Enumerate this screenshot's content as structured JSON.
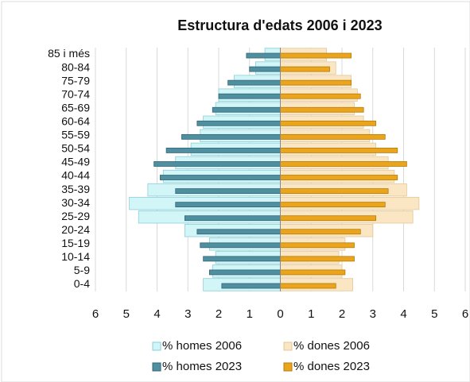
{
  "chart_data": {
    "type": "pyramid",
    "title": "Estructura d'edats 2006 i 2023",
    "categories": [
      "0-4",
      "5-9",
      "10-14",
      "15-19",
      "20-24",
      "25-29",
      "30-34",
      "35-39",
      "40-44",
      "45-49",
      "50-54",
      "55-59",
      "60-64",
      "65-69",
      "70-74",
      "75-79",
      "80-84",
      "85 i més"
    ],
    "series": [
      {
        "name": "% homes 2006",
        "color": "#d2f6f8",
        "stroke": "#8ccfd6",
        "year": "2006",
        "values": [
          -2.5,
          -2.2,
          -2.1,
          -2.3,
          -3.1,
          -4.6,
          -4.9,
          -4.3,
          -3.8,
          -3.4,
          -2.9,
          -2.6,
          -2.5,
          -2.1,
          -2.0,
          -1.5,
          -0.8,
          -0.5
        ]
      },
      {
        "name": "% dones 2006",
        "color": "#fbe6c4",
        "stroke": "#e2c89a",
        "year": "2006",
        "values": [
          2.35,
          2.0,
          1.9,
          2.1,
          3.0,
          4.3,
          4.5,
          4.1,
          3.7,
          3.5,
          3.1,
          2.9,
          2.7,
          2.4,
          2.5,
          2.3,
          1.8,
          1.5
        ]
      },
      {
        "name": "% homes 2023",
        "color": "#4f8fa0",
        "stroke": "#2f6676",
        "year": "2023",
        "values": [
          -1.9,
          -2.3,
          -2.5,
          -2.6,
          -2.7,
          -3.1,
          -3.4,
          -3.4,
          -3.9,
          -4.1,
          -3.7,
          -3.2,
          -2.7,
          -2.2,
          -2.0,
          -1.7,
          -1.0,
          -1.1
        ]
      },
      {
        "name": "% dones 2023",
        "color": "#eaa51c",
        "stroke": "#b57b08",
        "year": "2023",
        "values": [
          1.8,
          2.1,
          2.4,
          2.4,
          2.6,
          3.1,
          3.4,
          3.5,
          3.8,
          4.1,
          3.8,
          3.4,
          3.1,
          2.7,
          2.6,
          2.3,
          1.6,
          2.3
        ]
      }
    ],
    "xlim": [
      -6,
      6
    ],
    "xticks": [
      {
        "value": -6,
        "label": "6"
      },
      {
        "value": -5,
        "label": "5"
      },
      {
        "value": -4,
        "label": "4"
      },
      {
        "value": -3,
        "label": "3"
      },
      {
        "value": -2,
        "label": "2"
      },
      {
        "value": -1,
        "label": "1"
      },
      0,
      1,
      2,
      3,
      4,
      5,
      6
    ],
    "grid": true
  }
}
